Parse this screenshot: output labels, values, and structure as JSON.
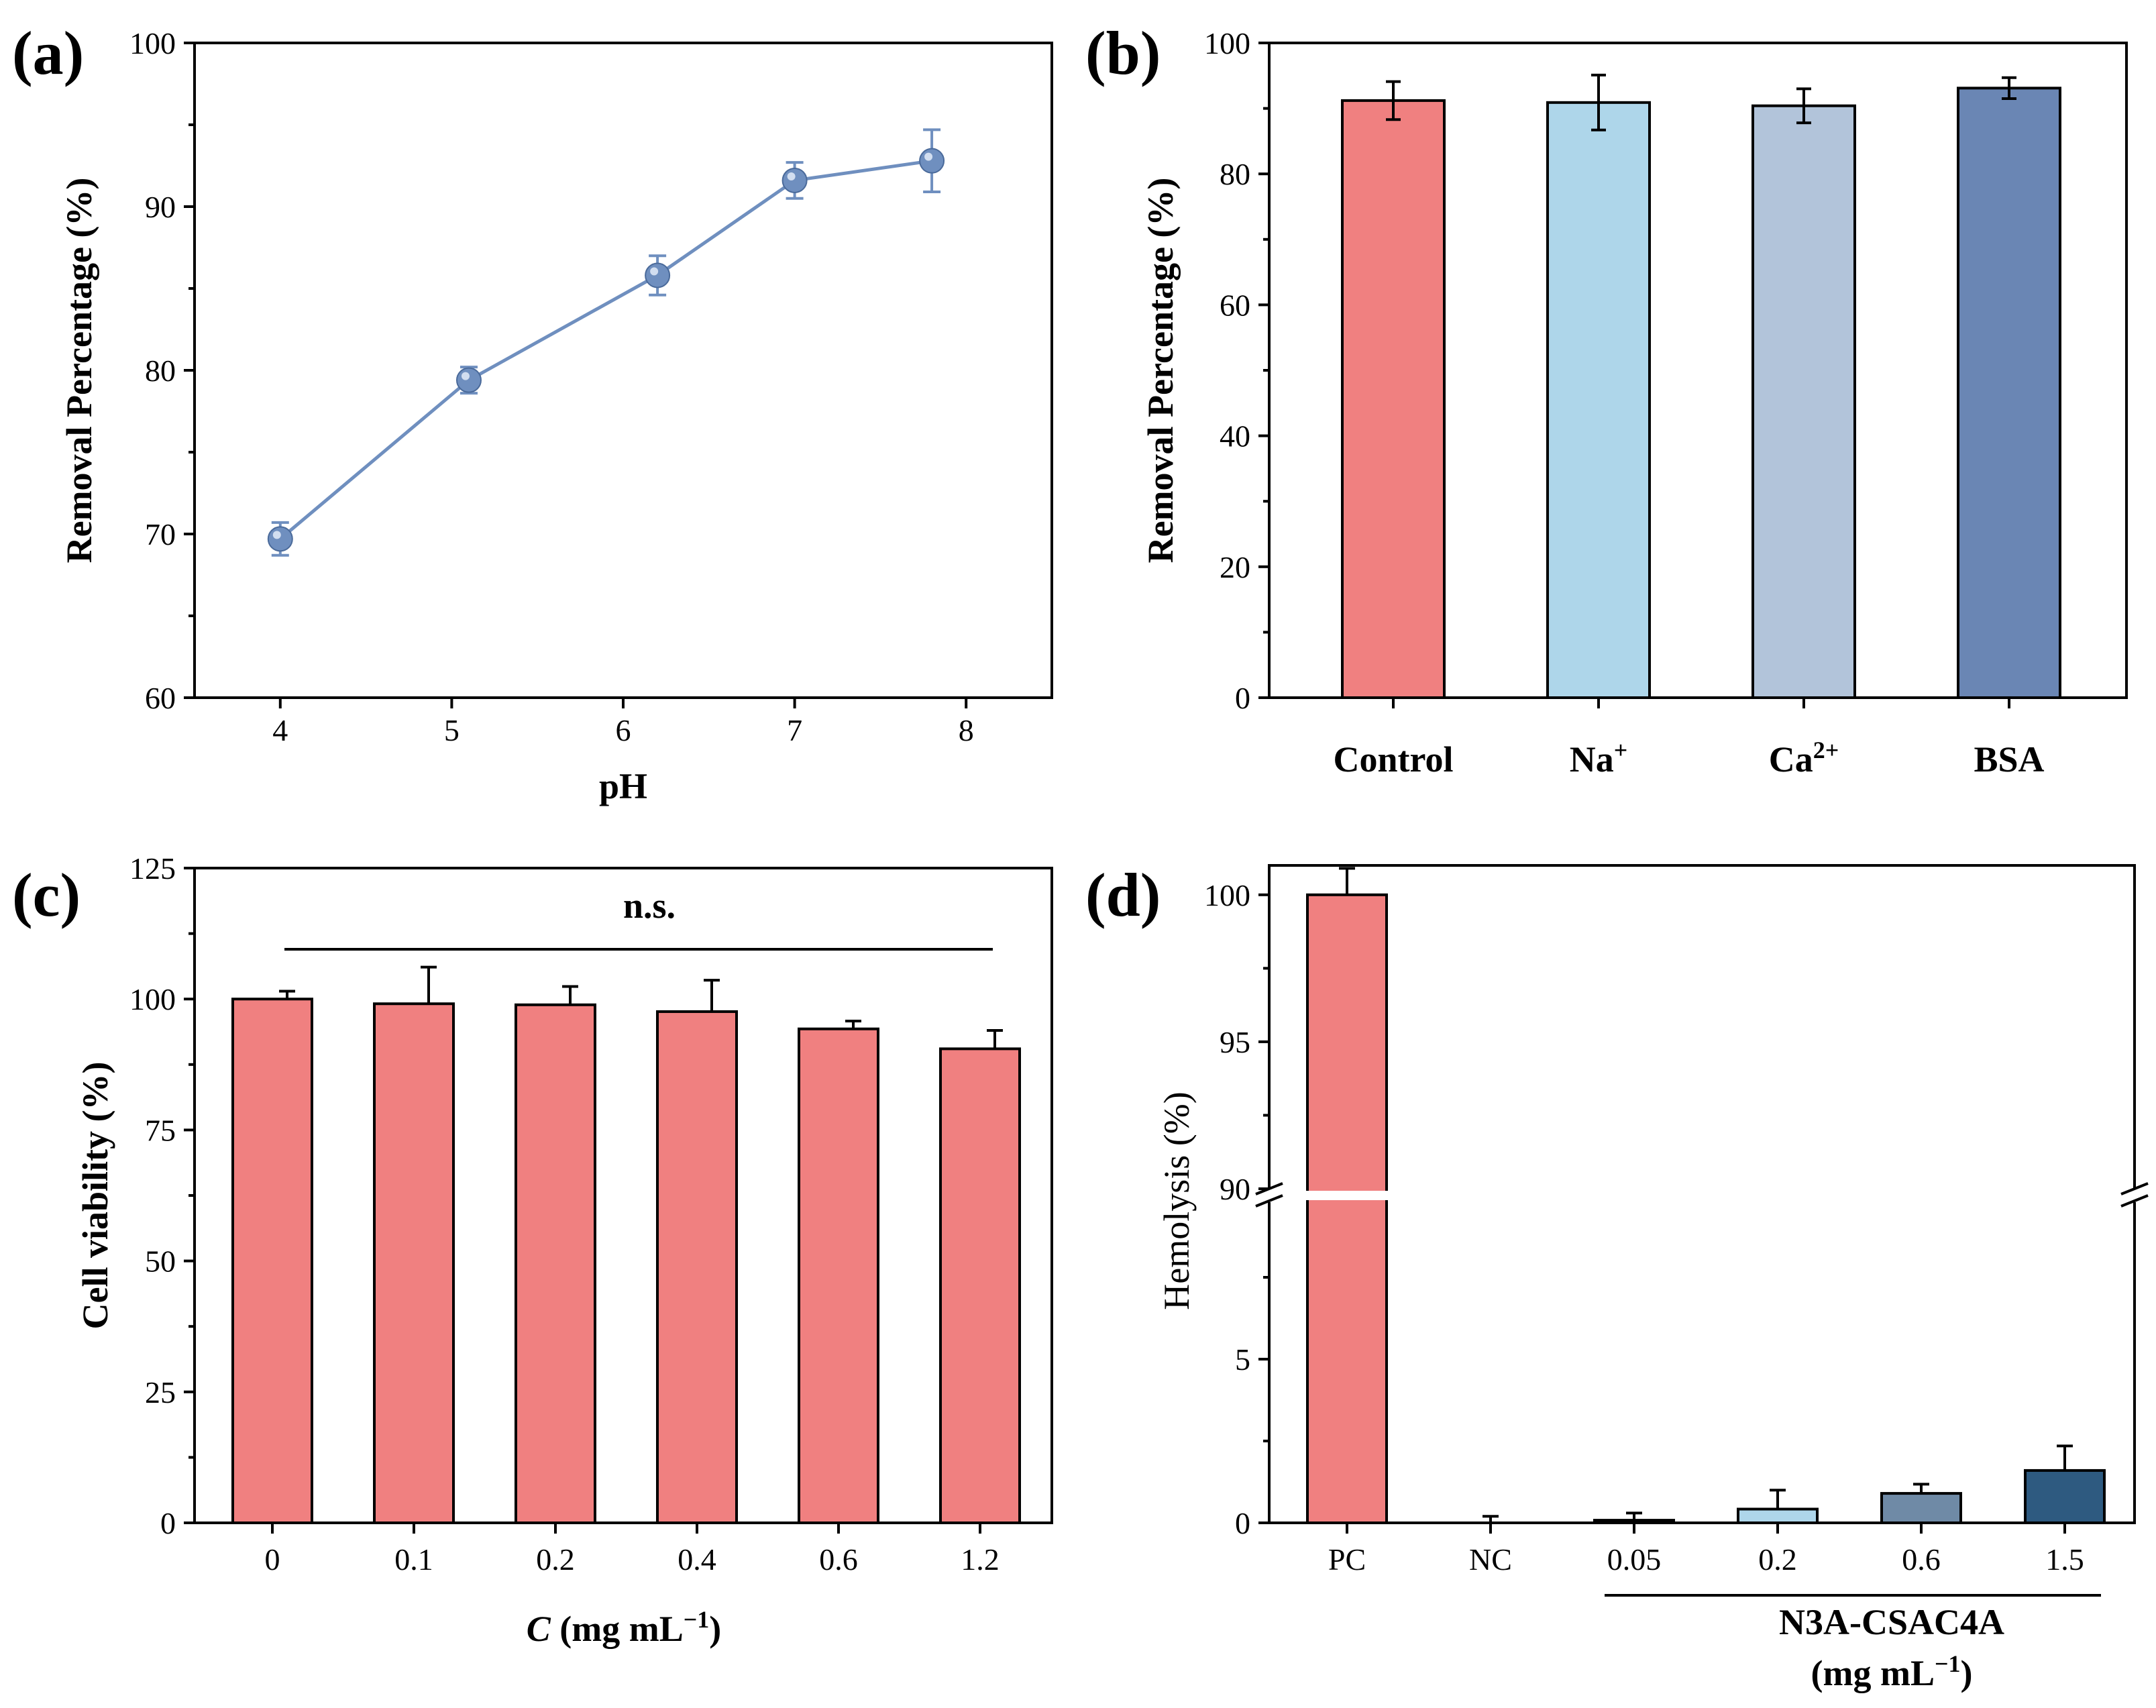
{
  "figure": {
    "colors": {
      "frame": "#000000",
      "line_marker": "#6f8fbf",
      "bar_pink": "#f08080",
      "bar_light_blue": "#aed6ea",
      "bar_pale_steel": "#b2c4da",
      "bar_steel_blue": "#6a86b4",
      "bar_blue_mid": "#6f8aa6",
      "bar_dark_blue": "#2e5a80",
      "bar_darkest": "#1f3040"
    }
  },
  "chart_data": [
    {
      "id": "a",
      "panel_label": "(a)",
      "type": "line",
      "x": [
        4,
        5.1,
        6.2,
        7,
        7.8
      ],
      "y": [
        69.7,
        79.4,
        85.8,
        91.6,
        92.8
      ],
      "errors": [
        1.0,
        0.8,
        1.2,
        1.1,
        1.9
      ],
      "xlabel": "pH",
      "ylabel": "Removal Percentage (%)",
      "xlim": [
        3.5,
        8.5
      ],
      "ylim": [
        60,
        100
      ],
      "xticks": [
        4,
        5,
        6,
        7,
        8
      ],
      "yticks": [
        60,
        70,
        80,
        90,
        100
      ],
      "legend": "none",
      "grid": false
    },
    {
      "id": "b",
      "panel_label": "(b)",
      "type": "bar",
      "categories": [
        {
          "base": "Control",
          "sup": ""
        },
        {
          "base": "Na",
          "sup": "+"
        },
        {
          "base": "Ca",
          "sup": "2+"
        },
        {
          "base": "BSA",
          "sup": ""
        }
      ],
      "values": [
        91.2,
        90.9,
        90.4,
        93.1
      ],
      "errors": [
        2.9,
        4.2,
        2.6,
        1.6
      ],
      "ylabel": "Removal Percentage (%)",
      "ylim": [
        0,
        100
      ],
      "yticks": [
        0,
        20,
        40,
        60,
        80,
        100
      ],
      "legend": "none",
      "grid": false
    },
    {
      "id": "c",
      "panel_label": "(c)",
      "type": "bar",
      "categories": [
        "0",
        "0.1",
        "0.2",
        "0.4",
        "0.6",
        "1.2"
      ],
      "values": [
        100,
        99.1,
        98.9,
        97.6,
        94.3,
        90.5
      ],
      "errors": [
        1.5,
        7.0,
        3.5,
        6.0,
        1.5,
        3.5
      ],
      "xlabel": {
        "var": "C",
        "unit_prefix": " (mg mL",
        "unit_sup": "−1",
        "unit_suffix": ")"
      },
      "ylabel": "Cell viability (%)",
      "ylim": [
        0,
        125
      ],
      "yticks": [
        0,
        25,
        50,
        75,
        100,
        125
      ],
      "annotation": "n.s.",
      "legend": "none",
      "grid": false
    },
    {
      "id": "d",
      "panel_label": "(d)",
      "type": "bar",
      "categories": [
        "PC",
        "NC",
        "0.05",
        "0.2",
        "0.6",
        "1.5"
      ],
      "values": [
        100,
        0,
        0.08,
        0.42,
        0.9,
        1.6
      ],
      "errors": [
        0.9,
        0.2,
        0.22,
        0.58,
        0.28,
        0.75
      ],
      "ylabel": "Hemolysis (%)",
      "axis_break": {
        "lower": [
          0,
          10
        ],
        "upper": [
          90,
          101
        ]
      },
      "yticks_lower": [
        0,
        5
      ],
      "yticks_upper": [
        90,
        95,
        100
      ],
      "group_label_line1": "N3A-CSAC4A",
      "group_label_line2": {
        "prefix": "(mg mL",
        "sup": "−1",
        "suffix": ")"
      },
      "legend": "none",
      "grid": false
    }
  ]
}
